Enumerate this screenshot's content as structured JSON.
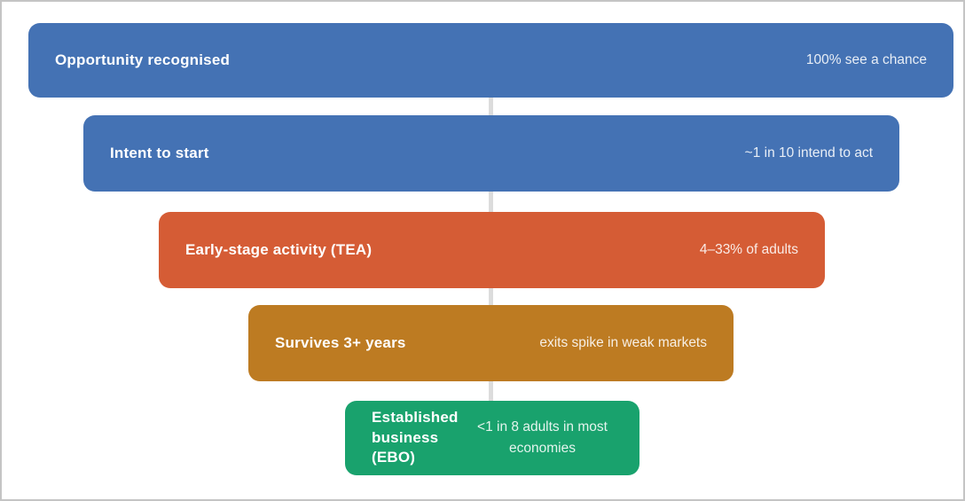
{
  "figure": {
    "background": "#ffffff",
    "border_color": "#c4c4c4",
    "connector_color": "#dcdcdc",
    "text_color": "#ffffff"
  },
  "stages": [
    {
      "label": "Opportunity recognised",
      "value": "100% see a chance",
      "color": "#4472b4"
    },
    {
      "label": "Intent to start",
      "value": "~1 in 10 intend to act",
      "color": "#4472b4"
    },
    {
      "label": "Early-stage activity (TEA)",
      "value": "4–33% of adults",
      "color": "#d55c35"
    },
    {
      "label": "Survives 3+ years",
      "value": "exits spike in weak markets",
      "color": "#bd7b22"
    },
    {
      "label": "Established business (EBO)",
      "value": "<1 in 8 adults in most economies",
      "color": "#19a26d"
    }
  ]
}
